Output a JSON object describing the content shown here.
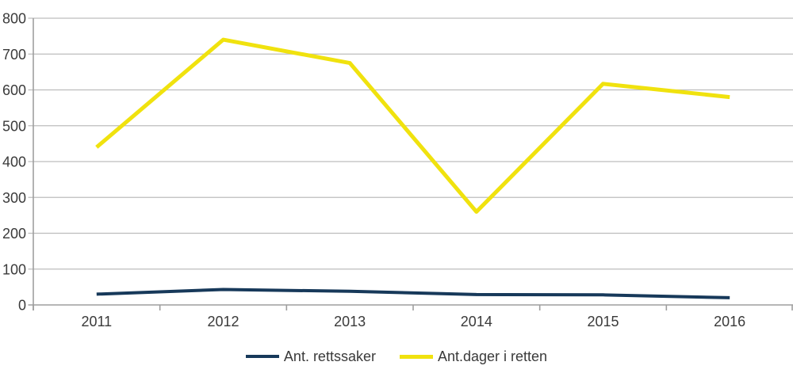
{
  "chart_data": {
    "type": "line",
    "title": "",
    "xlabel": "",
    "ylabel": "",
    "categories": [
      "2011",
      "2012",
      "2013",
      "2014",
      "2015",
      "2016"
    ],
    "series": [
      {
        "name": "Ant. rettssaker",
        "color": "#17395a",
        "stroke_width": 4,
        "values": [
          30,
          43,
          38,
          29,
          28,
          20
        ]
      },
      {
        "name": "Ant.dager i retten",
        "color": "#f0e20e",
        "stroke_width": 5,
        "values": [
          440,
          740,
          675,
          260,
          617,
          580
        ]
      }
    ],
    "ylim": [
      0,
      800
    ],
    "ytick_interval": 100,
    "ytick_labels": [
      "0",
      "100",
      "200",
      "300",
      "400",
      "500",
      "600",
      "700",
      "800"
    ],
    "grid": true,
    "legend_position": "bottom",
    "colors": {
      "gridline": "#bdbdbd",
      "axis": "#9e9e9e",
      "text": "#3a3a3a",
      "background": "#ffffff"
    }
  }
}
